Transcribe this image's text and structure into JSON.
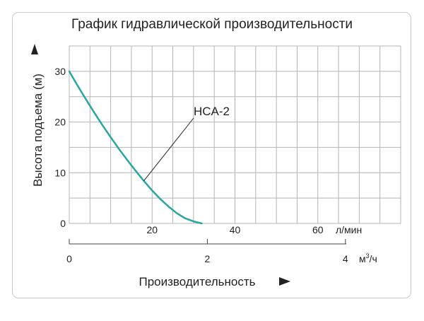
{
  "chart_data": {
    "type": "line",
    "title": "График гидравлической производительности",
    "ylabel": "Высота подъема (м)",
    "xlabel": "Производительность",
    "ylim": [
      0,
      35
    ],
    "x_lpm_lim": [
      0,
      80
    ],
    "y_ticks": [
      "30",
      "20",
      "10",
      "0"
    ],
    "x_lpm_ticks": [
      "20",
      "40",
      "60"
    ],
    "x_lpm_unit": "л/мин",
    "x_m3h_ticks": [
      "0",
      "2",
      "4"
    ],
    "x_m3h_unit_base": "м",
    "x_m3h_unit_sup": "3",
    "x_m3h_unit_tail": "/ч",
    "series": [
      {
        "name": "HCA-2",
        "color": "#2aa6a0",
        "x": [
          0,
          2,
          4,
          6,
          8,
          10,
          12,
          14,
          16,
          18,
          20,
          22,
          24,
          26,
          28,
          30,
          32
        ],
        "y": [
          30,
          27.2,
          24.5,
          21.9,
          19.4,
          17.0,
          14.7,
          12.5,
          10.4,
          8.4,
          6.5,
          4.8,
          3.3,
          2.0,
          1.0,
          0.4,
          0
        ]
      }
    ]
  }
}
